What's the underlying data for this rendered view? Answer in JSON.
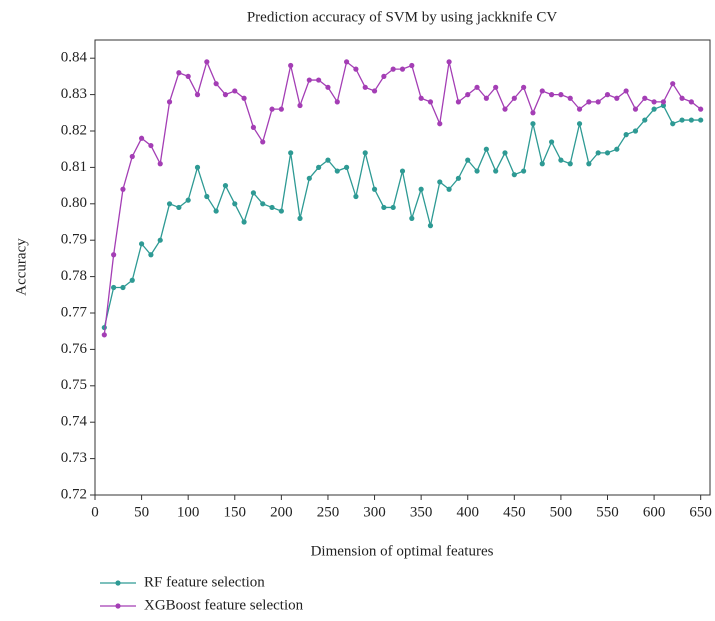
{
  "chart_data": {
    "type": "line",
    "title": "Prediction accuracy of SVM by using jackknife CV",
    "xlabel": "Dimension of optimal features",
    "ylabel": "Accuracy",
    "x": [
      10,
      20,
      30,
      40,
      50,
      60,
      70,
      80,
      90,
      100,
      110,
      120,
      130,
      140,
      150,
      160,
      170,
      180,
      190,
      200,
      210,
      220,
      230,
      240,
      250,
      260,
      270,
      280,
      290,
      300,
      310,
      320,
      330,
      340,
      350,
      360,
      370,
      380,
      390,
      400,
      410,
      420,
      430,
      440,
      450,
      460,
      470,
      480,
      490,
      500,
      510,
      520,
      530,
      540,
      550,
      560,
      570,
      580,
      590,
      600,
      610,
      620,
      630,
      640,
      650
    ],
    "series": [
      {
        "name": "RF feature selection",
        "color": "#2e9a94",
        "values": [
          0.766,
          0.777,
          0.777,
          0.779,
          0.789,
          0.786,
          0.79,
          0.8,
          0.799,
          0.801,
          0.81,
          0.802,
          0.798,
          0.805,
          0.8,
          0.795,
          0.803,
          0.8,
          0.799,
          0.798,
          0.814,
          0.796,
          0.807,
          0.81,
          0.812,
          0.809,
          0.81,
          0.802,
          0.814,
          0.804,
          0.799,
          0.799,
          0.809,
          0.796,
          0.804,
          0.794,
          0.806,
          0.804,
          0.807,
          0.812,
          0.809,
          0.815,
          0.809,
          0.814,
          0.808,
          0.809,
          0.822,
          0.811,
          0.817,
          0.812,
          0.811,
          0.822,
          0.811,
          0.814,
          0.814,
          0.815,
          0.819,
          0.82,
          0.823,
          0.826,
          0.827,
          0.822,
          0.823,
          0.823,
          0.823
        ]
      },
      {
        "name": "XGBoost feature selection",
        "color": "#a43eb5",
        "values": [
          0.764,
          0.786,
          0.804,
          0.813,
          0.818,
          0.816,
          0.811,
          0.828,
          0.836,
          0.835,
          0.83,
          0.839,
          0.833,
          0.83,
          0.831,
          0.829,
          0.821,
          0.817,
          0.826,
          0.826,
          0.838,
          0.827,
          0.834,
          0.834,
          0.832,
          0.828,
          0.839,
          0.837,
          0.832,
          0.831,
          0.835,
          0.837,
          0.837,
          0.838,
          0.829,
          0.828,
          0.822,
          0.839,
          0.828,
          0.83,
          0.832,
          0.829,
          0.832,
          0.826,
          0.829,
          0.832,
          0.825,
          0.831,
          0.83,
          0.83,
          0.829,
          0.826,
          0.828,
          0.828,
          0.83,
          0.829,
          0.831,
          0.826,
          0.829,
          0.828,
          0.828,
          0.833,
          0.829,
          0.828,
          0.826
        ]
      }
    ],
    "xlim": [
      0,
      660
    ],
    "ylim": [
      0.72,
      0.845
    ],
    "xticks": [
      0,
      50,
      100,
      150,
      200,
      250,
      300,
      350,
      400,
      450,
      500,
      550,
      600,
      650
    ],
    "yticks": [
      0.72,
      0.73,
      0.74,
      0.75,
      0.76,
      0.77,
      0.78,
      0.79,
      {
        "value": 0.8,
        "label": "0.80"
      },
      0.81,
      0.82,
      0.83,
      0.84
    ],
    "legend": "bottom"
  }
}
